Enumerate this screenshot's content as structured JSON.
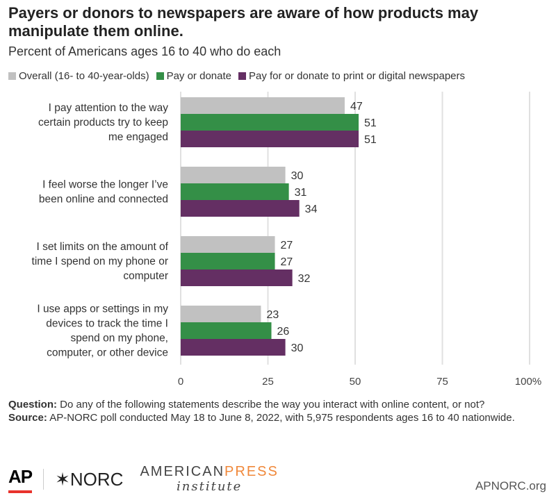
{
  "title": "Payers or donors to newspapers are aware of how products may manipulate them online.",
  "subtitle": "Percent of Americans ages 16 to 40 who do each",
  "chart_data": {
    "type": "bar",
    "orientation": "horizontal",
    "categories": [
      [
        "I pay attention to the way",
        "certain products try to keep",
        "me engaged"
      ],
      [
        "I feel worse the longer I’ve",
        "been online and connected"
      ],
      [
        "I set limits on the amount of",
        "time I spend on my phone or",
        "computer"
      ],
      [
        "I use apps or settings in my",
        "devices to track the time I",
        "spend on my phone,",
        "computer, or other device"
      ]
    ],
    "series": [
      {
        "name": "Overall (16- to 40-year-olds)",
        "color": "#c1c1c1",
        "values": [
          47,
          30,
          27,
          23
        ]
      },
      {
        "name": "Pay or donate",
        "color": "#348f47",
        "values": [
          51,
          31,
          27,
          26
        ]
      },
      {
        "name": "Pay for or donate to print or digital newspapers",
        "color": "#642f63",
        "values": [
          51,
          34,
          32,
          30
        ]
      }
    ],
    "xlim": [
      0,
      100
    ],
    "xticks": [
      "0",
      "25",
      "50",
      "75",
      "100%"
    ],
    "xtick_values": [
      0,
      25,
      50,
      75,
      100
    ],
    "grid": true,
    "legend": "top"
  },
  "notes": {
    "question_label": "Question:",
    "question": " Do any of the following statements describe the way you interact with online content, or not?",
    "source_label": "Source:",
    "source": " AP-NORC poll conducted May 18 to June 8, 2022, with 5,975 respondents ages 16 to 40 nationwide."
  },
  "logos": {
    "ap": "AP",
    "norc": "✶NORC",
    "api_1": "AMERICAN",
    "api_2": "PRESS",
    "api_3": "institute"
  },
  "site": "APNORC.org"
}
